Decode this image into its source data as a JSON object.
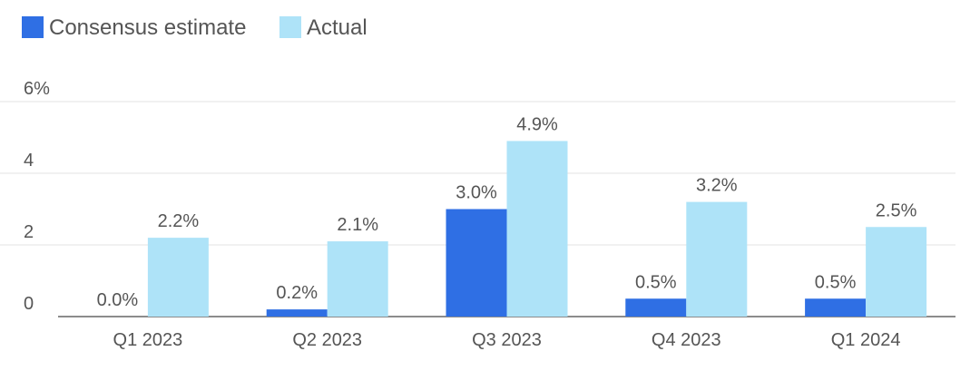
{
  "chart_data": {
    "type": "bar",
    "categories": [
      "Q1 2023",
      "Q2 2023",
      "Q3 2023",
      "Q4 2023",
      "Q1 2024"
    ],
    "series": [
      {
        "name": "Consensus estimate",
        "values": [
          0.0,
          0.2,
          3.0,
          0.5,
          0.5
        ],
        "labels": [
          "0.0%",
          "0.2%",
          "3.0%",
          "0.5%",
          "0.5%"
        ],
        "color": "#2f6fe4"
      },
      {
        "name": "Actual",
        "values": [
          2.2,
          2.1,
          4.9,
          3.2,
          2.5
        ],
        "labels": [
          "2.2%",
          "2.1%",
          "4.9%",
          "3.2%",
          "2.5%"
        ],
        "color": "#aee3f8"
      }
    ],
    "yticks": [
      0,
      2,
      4,
      6
    ],
    "ytick_labels": [
      "0",
      "2",
      "4",
      "6%"
    ],
    "ylim": [
      0,
      6
    ],
    "grid": true,
    "legend_position": "top-left",
    "title": "",
    "xlabel": "",
    "ylabel": ""
  }
}
